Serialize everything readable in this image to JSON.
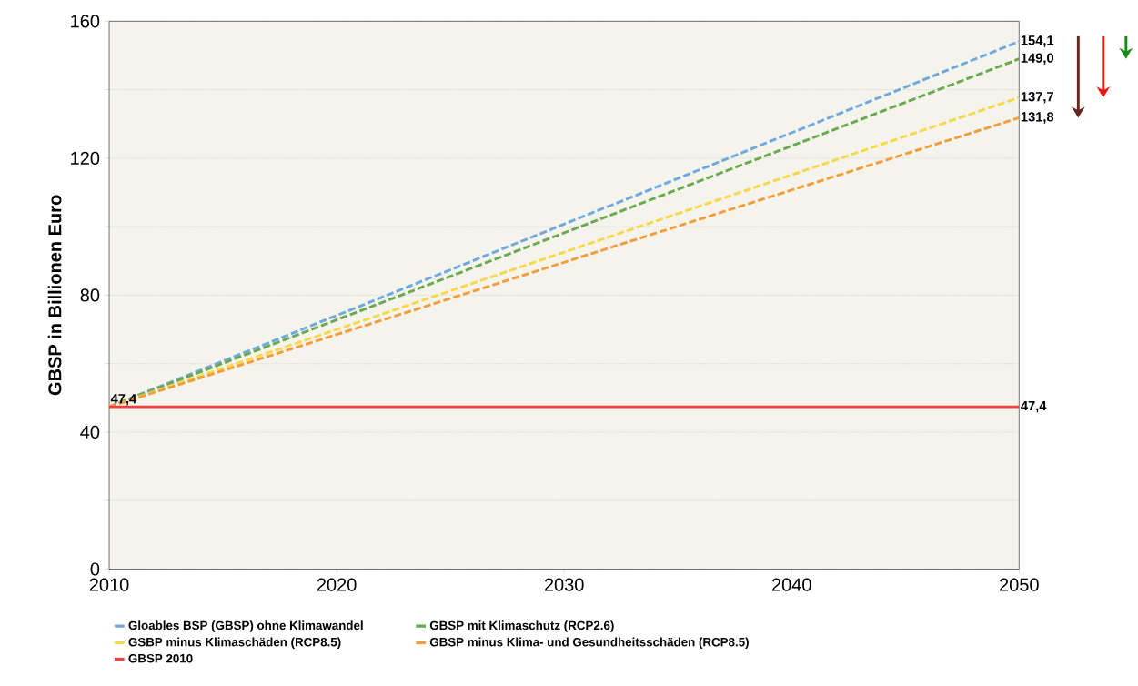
{
  "chart_data": {
    "type": "line",
    "ylabel": "GBSP in Billionen Euro",
    "x": [
      2010,
      2050
    ],
    "xlim": [
      2010,
      2050
    ],
    "xticks": [
      2010,
      2020,
      2030,
      2040,
      2050
    ],
    "ylim": [
      0,
      160
    ],
    "yticks": [
      0,
      {
        "value": 20,
        "label": null
      },
      40,
      {
        "value": 60,
        "label": null
      },
      80,
      {
        "value": 100,
        "label": null
      },
      120,
      {
        "value": 140,
        "label": null
      },
      160
    ],
    "grid": "y",
    "legend": "bottom",
    "series": [
      {
        "name": "Gloables BSP (GBSP) ohne Klimawandel",
        "color": "#6fa8dc",
        "values": [
          47.4,
          154.1
        ],
        "line_style": "dashed",
        "value_labels": [
          "47,4",
          "154,1"
        ]
      },
      {
        "name": "GBSP mit Klimaschutz (RCP2.6)",
        "color": "#6aa84f",
        "values": [
          47.4,
          149.0
        ],
        "line_style": "dashed",
        "value_labels": [
          null,
          "149,0"
        ]
      },
      {
        "name": "GSBP minus Klimaschäden (RCP8.5)",
        "color": "#f6d84a",
        "values": [
          47.4,
          137.7
        ],
        "line_style": "dashed",
        "value_labels": [
          null,
          "137,7"
        ]
      },
      {
        "name": "GBSP minus Klima- und Gesundheitsschäden (RCP8.5)",
        "color": "#f39c3c",
        "values": [
          47.4,
          131.8
        ],
        "line_style": "dashed",
        "value_labels": [
          null,
          "131,8"
        ]
      },
      {
        "name": "GBSP 2010",
        "color": "#ee4040",
        "values": [
          47.4,
          47.4
        ],
        "line_style": "solid",
        "value_labels": [
          null,
          "47,4"
        ]
      }
    ]
  }
}
